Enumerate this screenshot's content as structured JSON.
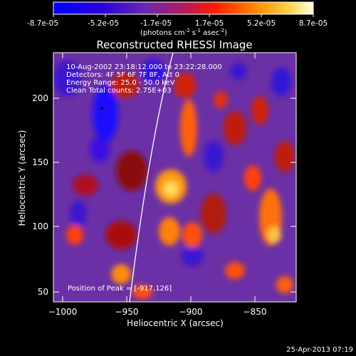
{
  "colorbar": {
    "ticks": [
      "-8.7e-05",
      "-5.2e-05",
      "-1.7e-05",
      "1.7e-05",
      "5.2e-05",
      "8.7e-05"
    ],
    "units_main": "(photons cm",
    "units_sup1": "-2",
    "units_mid": " s",
    "units_sup2": "-1",
    "units_end": " asec",
    "units_sup3": "-2",
    "units_close": ")"
  },
  "plot": {
    "title": "Reconstructed RHESSI Image",
    "info_lines": [
      "10-Aug-2002 23:18:12.000 to 23:22:28.000",
      "Detectors: 4F 5F 6F 7F 8F, Att 0",
      "Energy Range: 25.0 - 50.0 keV",
      "Clean    Total counts: 2.75E+03"
    ],
    "peak_label": "Position of Peak = [-917,126]",
    "xlabel": "Heliocentric X (arcsec)",
    "ylabel": "Heliocentric Y (arcsec)",
    "xticks": [
      "−1000",
      "−950",
      "−900",
      "−850"
    ],
    "yticks": [
      "200",
      "150",
      "100",
      "50"
    ],
    "footer_date": "25-Apr-2013 07:19"
  },
  "chart_data": {
    "type": "heatmap",
    "title": "Reconstructed RHESSI Image",
    "xlabel": "Heliocentric X (arcsec)",
    "ylabel": "Heliocentric Y (arcsec)",
    "xlim": [
      -1008,
      -818
    ],
    "ylim": [
      45,
      230
    ],
    "colorbar_range": [
      -8.7e-05,
      8.7e-05
    ],
    "peak": [
      -917,
      126
    ],
    "colors": {
      "negative": "#1a00ff",
      "zero": "#7a38a8",
      "positive": "#ff3a00",
      "max": "#ffff80"
    }
  }
}
